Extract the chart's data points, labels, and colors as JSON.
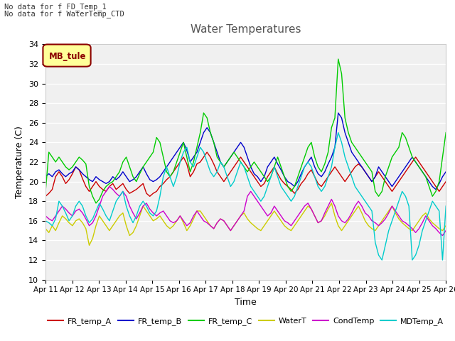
{
  "title": "Water Temperatures",
  "xlabel": "Time",
  "ylabel": "Temperature (C)",
  "ylim": [
    10,
    34
  ],
  "annotations": [
    "No data for f FD_Temp_1",
    "No data for f WaterTemp_CTD"
  ],
  "legend_box_label": "MB_tule",
  "x_tick_labels": [
    "Apr 11",
    "Apr 12",
    "Apr 13",
    "Apr 14",
    "Apr 15",
    "Apr 16",
    "Apr 17",
    "Apr 18",
    "Apr 19",
    "Apr 20",
    "Apr 21",
    "Apr 22",
    "Apr 23",
    "Apr 24",
    "Apr 25",
    "Apr 26"
  ],
  "series_colors": {
    "FR_temp_A": "#cc0000",
    "FR_temp_B": "#0000cc",
    "FR_temp_C": "#00cc00",
    "WaterT": "#cccc00",
    "CondTemp": "#cc00cc",
    "MDTemp_A": "#00cccc"
  },
  "FR_temp_A": [
    18.5,
    18.8,
    19.2,
    20.5,
    21.0,
    20.5,
    19.8,
    20.2,
    20.8,
    21.5,
    21.2,
    20.3,
    19.5,
    19.0,
    19.5,
    20.0,
    19.5,
    19.2,
    19.0,
    19.5,
    19.8,
    19.2,
    19.5,
    19.8,
    19.2,
    18.8,
    19.0,
    19.2,
    19.5,
    19.8,
    18.8,
    18.5,
    18.8,
    19.0,
    19.5,
    19.8,
    20.2,
    20.5,
    21.0,
    21.5,
    22.0,
    22.5,
    21.8,
    20.5,
    21.0,
    21.8,
    22.0,
    22.5,
    23.0,
    22.5,
    21.8,
    21.0,
    20.5,
    20.0,
    20.5,
    21.0,
    21.5,
    22.0,
    22.5,
    22.0,
    21.5,
    21.0,
    20.5,
    20.0,
    19.5,
    19.8,
    20.5,
    21.0,
    21.5,
    20.8,
    20.2,
    19.8,
    19.5,
    19.2,
    18.8,
    19.2,
    19.8,
    20.2,
    20.8,
    21.2,
    20.5,
    19.8,
    19.5,
    20.0,
    20.5,
    21.0,
    21.5,
    21.0,
    20.5,
    20.0,
    20.5,
    21.0,
    21.5,
    21.8,
    21.5,
    21.0,
    20.5,
    20.0,
    20.5,
    21.0,
    20.5,
    20.0,
    19.5,
    19.0,
    19.5,
    20.0,
    20.5,
    21.0,
    21.5,
    22.0,
    22.5,
    22.0,
    21.5,
    21.0,
    20.5,
    20.0,
    19.5,
    19.0,
    19.5,
    20.0
  ],
  "FR_temp_B": [
    20.5,
    20.8,
    20.5,
    21.0,
    21.2,
    20.8,
    20.5,
    20.8,
    21.0,
    21.5,
    21.2,
    20.8,
    20.5,
    20.2,
    20.0,
    20.5,
    20.2,
    20.0,
    19.8,
    20.0,
    20.5,
    20.2,
    20.5,
    21.0,
    20.5,
    20.0,
    20.2,
    20.5,
    21.0,
    21.5,
    20.8,
    20.2,
    20.0,
    20.2,
    20.5,
    21.0,
    21.5,
    22.0,
    22.5,
    23.0,
    23.5,
    24.0,
    23.2,
    22.0,
    22.5,
    23.0,
    24.0,
    25.0,
    25.5,
    25.0,
    24.0,
    23.0,
    22.0,
    21.5,
    22.0,
    22.5,
    23.0,
    23.5,
    24.0,
    23.5,
    22.5,
    21.5,
    20.8,
    20.5,
    20.0,
    20.5,
    21.5,
    22.0,
    22.5,
    21.8,
    21.2,
    20.5,
    20.0,
    19.8,
    19.5,
    20.0,
    20.8,
    21.5,
    22.0,
    22.5,
    21.5,
    20.8,
    20.5,
    21.0,
    21.8,
    22.5,
    23.5,
    27.0,
    26.5,
    25.0,
    24.0,
    23.0,
    22.5,
    22.0,
    21.5,
    21.0,
    20.5,
    20.0,
    20.5,
    21.5,
    21.0,
    20.5,
    20.0,
    19.5,
    20.0,
    20.5,
    21.0,
    21.5,
    22.0,
    22.5,
    22.0,
    21.5,
    21.0,
    20.5,
    20.0,
    19.5,
    19.2,
    19.8,
    20.5,
    21.0
  ],
  "FR_temp_C": [
    19.0,
    23.0,
    22.5,
    22.0,
    22.5,
    22.0,
    21.5,
    21.2,
    21.5,
    22.0,
    22.5,
    22.2,
    21.8,
    19.5,
    18.5,
    17.8,
    18.2,
    19.0,
    19.5,
    19.8,
    20.0,
    20.5,
    21.0,
    22.0,
    22.5,
    21.5,
    20.5,
    20.0,
    20.8,
    21.5,
    22.0,
    22.5,
    23.0,
    24.5,
    24.0,
    22.5,
    21.0,
    20.5,
    21.0,
    22.0,
    23.0,
    24.0,
    22.5,
    21.0,
    22.0,
    23.5,
    25.0,
    27.0,
    26.5,
    25.0,
    24.0,
    22.5,
    22.0,
    21.5,
    22.0,
    22.5,
    23.0,
    22.5,
    22.0,
    21.5,
    21.0,
    21.5,
    22.0,
    21.5,
    21.0,
    20.5,
    20.0,
    20.5,
    21.5,
    22.5,
    21.5,
    20.5,
    19.5,
    19.0,
    19.5,
    20.5,
    21.5,
    22.5,
    23.5,
    24.0,
    22.5,
    21.5,
    21.0,
    21.8,
    23.0,
    25.5,
    26.5,
    32.5,
    31.0,
    26.5,
    25.0,
    24.0,
    23.5,
    23.0,
    22.5,
    22.0,
    21.5,
    21.0,
    19.0,
    18.5,
    19.0,
    20.5,
    21.5,
    22.5,
    23.0,
    23.5,
    25.0,
    24.5,
    23.5,
    22.5,
    22.0,
    21.5,
    21.0,
    20.5,
    19.5,
    18.5,
    19.0,
    20.0,
    22.5,
    25.0
  ],
  "WaterT": [
    15.2,
    14.8,
    15.5,
    15.0,
    15.8,
    16.5,
    16.2,
    15.8,
    15.5,
    16.0,
    16.2,
    15.8,
    15.2,
    13.5,
    14.2,
    15.5,
    16.5,
    16.0,
    15.5,
    15.0,
    15.5,
    16.0,
    16.5,
    16.8,
    15.5,
    14.5,
    14.8,
    15.5,
    16.5,
    17.5,
    17.0,
    16.5,
    16.0,
    16.2,
    16.5,
    16.0,
    15.5,
    15.2,
    15.5,
    16.0,
    16.5,
    15.8,
    15.0,
    15.5,
    16.2,
    17.0,
    17.0,
    16.5,
    16.0,
    15.5,
    15.2,
    15.8,
    16.2,
    16.0,
    15.5,
    15.0,
    15.5,
    16.0,
    16.5,
    16.8,
    16.2,
    15.8,
    15.5,
    15.2,
    15.0,
    15.5,
    16.0,
    16.5,
    17.0,
    16.5,
    16.0,
    15.5,
    15.2,
    15.0,
    15.5,
    16.0,
    16.5,
    17.0,
    17.5,
    17.2,
    16.5,
    15.8,
    16.0,
    16.5,
    17.2,
    17.8,
    16.5,
    15.5,
    15.0,
    15.5,
    16.0,
    16.5,
    17.0,
    17.5,
    16.8,
    16.0,
    15.5,
    15.2,
    15.0,
    15.5,
    16.0,
    16.5,
    17.0,
    17.5,
    16.8,
    16.2,
    15.8,
    15.5,
    15.2,
    15.0,
    15.5,
    16.0,
    16.5,
    16.8,
    16.2,
    15.8,
    15.5,
    15.2,
    15.0,
    15.5
  ],
  "CondTemp": [
    16.5,
    16.2,
    16.0,
    16.5,
    17.0,
    17.5,
    17.2,
    16.8,
    16.5,
    17.0,
    17.2,
    16.8,
    16.2,
    15.5,
    15.8,
    16.5,
    17.5,
    18.5,
    19.0,
    19.5,
    19.2,
    18.8,
    18.5,
    19.0,
    18.5,
    17.5,
    16.8,
    16.2,
    16.8,
    17.5,
    17.8,
    17.2,
    16.8,
    16.5,
    16.8,
    17.0,
    16.5,
    16.0,
    15.8,
    16.0,
    16.5,
    16.0,
    15.5,
    15.8,
    16.5,
    17.0,
    16.5,
    16.0,
    15.8,
    15.5,
    15.2,
    15.8,
    16.2,
    16.0,
    15.5,
    15.0,
    15.5,
    16.0,
    16.5,
    17.0,
    18.5,
    19.0,
    18.5,
    18.0,
    17.5,
    17.0,
    16.5,
    16.8,
    17.5,
    17.0,
    16.5,
    16.0,
    15.8,
    15.5,
    16.0,
    16.5,
    17.0,
    17.5,
    17.8,
    17.2,
    16.5,
    15.8,
    16.0,
    16.8,
    17.5,
    18.2,
    17.5,
    16.5,
    16.0,
    15.8,
    16.2,
    16.8,
    17.5,
    18.0,
    17.5,
    16.8,
    16.5,
    16.0,
    15.8,
    15.5,
    15.8,
    16.2,
    16.8,
    17.5,
    17.0,
    16.5,
    16.0,
    15.8,
    15.5,
    15.2,
    14.8,
    15.2,
    15.8,
    16.5,
    16.0,
    15.5,
    15.2,
    14.8,
    14.5,
    15.0
  ],
  "MDTemp_A": [
    16.0,
    15.8,
    15.5,
    16.2,
    18.0,
    17.5,
    16.8,
    16.0,
    16.5,
    17.5,
    18.0,
    17.5,
    16.5,
    15.8,
    16.2,
    17.0,
    17.8,
    17.2,
    16.5,
    16.0,
    17.0,
    18.0,
    18.5,
    19.0,
    17.5,
    16.5,
    15.8,
    16.5,
    17.5,
    18.0,
    17.5,
    16.8,
    16.5,
    17.0,
    18.5,
    20.5,
    21.5,
    20.5,
    19.5,
    20.5,
    22.0,
    23.0,
    23.5,
    22.0,
    21.5,
    22.5,
    23.5,
    23.0,
    22.0,
    21.0,
    20.5,
    21.0,
    22.0,
    21.5,
    20.5,
    19.5,
    20.0,
    21.0,
    22.0,
    21.5,
    20.5,
    19.5,
    19.0,
    18.5,
    18.0,
    18.5,
    19.5,
    20.5,
    21.5,
    20.5,
    19.5,
    19.0,
    18.5,
    18.0,
    18.5,
    19.5,
    20.5,
    21.5,
    22.0,
    21.5,
    20.5,
    19.5,
    19.0,
    19.5,
    20.5,
    21.5,
    23.5,
    25.0,
    24.0,
    22.5,
    21.5,
    20.5,
    19.5,
    19.0,
    18.5,
    18.0,
    17.5,
    17.0,
    13.8,
    12.5,
    12.0,
    13.5,
    15.0,
    16.0,
    17.0,
    18.0,
    19.0,
    18.5,
    17.5,
    12.0,
    12.5,
    13.5,
    15.0,
    16.0,
    17.0,
    18.0,
    17.5,
    17.0,
    12.0,
    17.5
  ]
}
